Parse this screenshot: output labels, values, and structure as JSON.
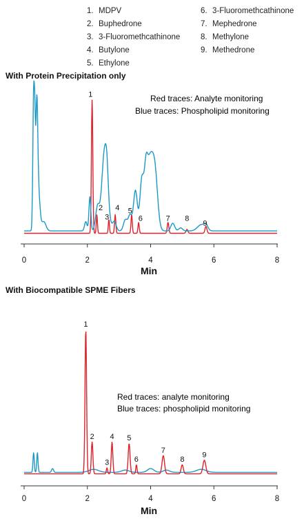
{
  "legend": {
    "left": [
      {
        "num": "1.",
        "name": "MDPV"
      },
      {
        "num": "2.",
        "name": "Buphedrone"
      },
      {
        "num": "3.",
        "name": "3-Fluoromethcathinone"
      },
      {
        "num": "4.",
        "name": "Butylone"
      },
      {
        "num": "5.",
        "name": "Ethylone"
      }
    ],
    "right": [
      {
        "num": "6.",
        "name": "3-Fluoromethcathinone"
      },
      {
        "num": "7.",
        "name": "Mephedrone"
      },
      {
        "num": "8.",
        "name": "Methylone"
      },
      {
        "num": "9.",
        "name": "Methedrone"
      }
    ]
  },
  "colors": {
    "red": "#e0202a",
    "blue": "#1a98c6"
  },
  "chart_data": [
    {
      "type": "line",
      "title": "With Protein Precipitation only",
      "xlabel": "Min",
      "xlim": [
        0,
        8
      ],
      "xticks": [
        "0",
        "2",
        "4",
        "6",
        "8"
      ],
      "annotation_red": "Red traces: Analyte monitoring",
      "annotation_blue": "Blue traces: Phospholipid monitoring",
      "series": [
        {
          "color": "red",
          "baseline": 0.02,
          "peaks": [
            [
              2.15,
              0.86,
              0.022
            ],
            [
              2.3,
              0.12,
              0.018
            ],
            [
              2.68,
              0.09,
              0.018
            ],
            [
              2.88,
              0.12,
              0.02
            ],
            [
              3.4,
              0.12,
              0.02
            ],
            [
              3.62,
              0.07,
              0.02
            ],
            [
              4.55,
              0.07,
              0.025
            ],
            [
              5.15,
              0.025,
              0.03
            ],
            [
              5.75,
              0.045,
              0.03
            ]
          ]
        },
        {
          "color": "blue",
          "baseline": 0.035,
          "peaks": [
            [
              0.3,
              0.86,
              0.025
            ],
            [
              0.34,
              0.5,
              0.02
            ],
            [
              0.4,
              0.72,
              0.03
            ],
            [
              0.45,
              0.25,
              0.05
            ],
            [
              0.62,
              0.06,
              0.07
            ],
            [
              1.95,
              0.06,
              0.04
            ],
            [
              2.08,
              0.22,
              0.03
            ],
            [
              2.32,
              0.15,
              0.06
            ],
            [
              2.55,
              0.53,
              0.09
            ],
            [
              2.62,
              0.1,
              0.04
            ],
            [
              2.85,
              0.06,
              0.06
            ],
            [
              3.2,
              0.07,
              0.06
            ],
            [
              3.35,
              0.1,
              0.06
            ],
            [
              3.52,
              0.26,
              0.06
            ],
            [
              3.72,
              0.3,
              0.06
            ],
            [
              3.85,
              0.2,
              0.05
            ],
            [
              3.98,
              0.47,
              0.12
            ],
            [
              4.15,
              0.25,
              0.08
            ],
            [
              4.7,
              0.05,
              0.06
            ],
            [
              4.95,
              0.02,
              0.06
            ],
            [
              5.6,
              0.04,
              0.12
            ],
            [
              5.75,
              0.03,
              0.06
            ]
          ]
        }
      ],
      "peak_labels": [
        {
          "t": "1",
          "x": 2.1,
          "y": 0.9
        },
        {
          "t": "2",
          "x": 2.42,
          "y": 0.17
        },
        {
          "t": "3",
          "x": 2.62,
          "y": 0.11
        },
        {
          "t": "4",
          "x": 2.95,
          "y": 0.17
        },
        {
          "t": "5",
          "x": 3.35,
          "y": 0.15
        },
        {
          "t": "6",
          "x": 3.68,
          "y": 0.1
        },
        {
          "t": "7",
          "x": 4.55,
          "y": 0.1
        },
        {
          "t": "8",
          "x": 5.15,
          "y": 0.1
        },
        {
          "t": "9",
          "x": 5.72,
          "y": 0.07
        }
      ]
    },
    {
      "type": "line",
      "title": "With Biocompatible SPME Fibers",
      "xlabel": "Min",
      "xlim": [
        0,
        8
      ],
      "xticks": [
        "0",
        "2",
        "4",
        "6",
        "8"
      ],
      "annotation_red": "Red traces: analyte monitoring",
      "annotation_blue": "Blue traces: phospholipid monitoring",
      "series": [
        {
          "color": "blue",
          "baseline": 0.03,
          "peaks": [
            [
              0.3,
              0.13,
              0.02
            ],
            [
              0.42,
              0.13,
              0.02
            ],
            [
              0.9,
              0.025,
              0.03
            ],
            [
              2.2,
              0.02,
              0.15
            ],
            [
              3.2,
              0.015,
              0.12
            ],
            [
              4.0,
              0.025,
              0.1
            ],
            [
              4.5,
              0.015,
              0.1
            ],
            [
              5.6,
              0.02,
              0.15
            ]
          ]
        },
        {
          "color": "red",
          "baseline": 0.02,
          "peaks": [
            [
              1.95,
              0.95,
              0.025
            ],
            [
              2.15,
              0.21,
              0.025
            ],
            [
              2.62,
              0.04,
              0.02
            ],
            [
              2.78,
              0.21,
              0.025
            ],
            [
              3.32,
              0.2,
              0.03
            ],
            [
              3.55,
              0.06,
              0.02
            ],
            [
              4.4,
              0.12,
              0.04
            ],
            [
              5.0,
              0.06,
              0.035
            ],
            [
              5.7,
              0.09,
              0.045
            ]
          ]
        }
      ],
      "peak_labels": [
        {
          "t": "1",
          "x": 1.95,
          "y": 0.99
        },
        {
          "t": "2",
          "x": 2.15,
          "y": 0.25
        },
        {
          "t": "3",
          "x": 2.62,
          "y": 0.08
        },
        {
          "t": "4",
          "x": 2.78,
          "y": 0.25
        },
        {
          "t": "5",
          "x": 3.32,
          "y": 0.24
        },
        {
          "t": "6",
          "x": 3.55,
          "y": 0.1
        },
        {
          "t": "7",
          "x": 4.4,
          "y": 0.16
        },
        {
          "t": "8",
          "x": 5.0,
          "y": 0.1
        },
        {
          "t": "9",
          "x": 5.7,
          "y": 0.13
        }
      ]
    }
  ]
}
